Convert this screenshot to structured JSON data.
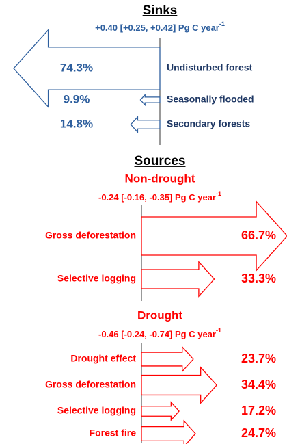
{
  "sinks": {
    "title": "Sinks",
    "subtitle": "+0.40 [+0.25, +0.42] Pg C year",
    "subtitle_exponent": "-1",
    "items": [
      {
        "label": "Undisturbed forest",
        "value": 74.3,
        "value_label": "74.3%"
      },
      {
        "label": "Seasonally flooded",
        "value": 9.9,
        "value_label": "9.9%"
      },
      {
        "label": "Secondary forests",
        "value": 14.8,
        "value_label": "14.8%"
      }
    ]
  },
  "sources": {
    "title": "Sources",
    "groups": [
      {
        "title": "Non-drought",
        "subtitle": "-0.24 [-0.16, -0.35] Pg C year",
        "subtitle_exponent": "-1",
        "items": [
          {
            "label": "Gross deforestation",
            "value": 66.7,
            "value_label": "66.7%"
          },
          {
            "label": "Selective logging",
            "value": 33.3,
            "value_label": "33.3%"
          }
        ]
      },
      {
        "title": "Drought",
        "subtitle": "-0.46 [-0.24, -0.74] Pg C year",
        "subtitle_exponent": "-1",
        "items": [
          {
            "label": "Drought effect",
            "value": 23.7,
            "value_label": "23.7%"
          },
          {
            "label": "Gross deforestation",
            "value": 34.4,
            "value_label": "34.4%"
          },
          {
            "label": "Selective logging",
            "value": 17.2,
            "value_label": "17.2%"
          },
          {
            "label": "Forest fire",
            "value": 24.7,
            "value_label": "24.7%"
          }
        ]
      }
    ]
  }
}
